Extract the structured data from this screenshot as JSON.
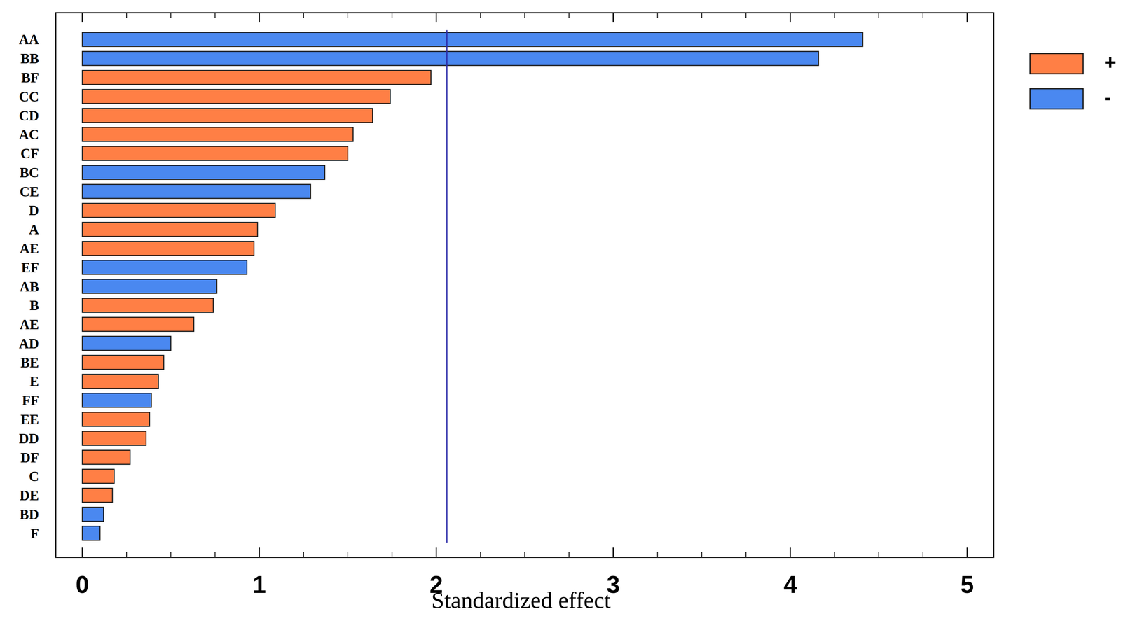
{
  "chart_data": {
    "type": "bar",
    "orientation": "horizontal",
    "x_label": "Standardized effect",
    "categories": [
      "AA",
      "BB",
      "BF",
      "CC",
      "CD",
      "AC",
      "CF",
      "BC",
      "CE",
      "D",
      "A",
      "AE",
      "EF",
      "AB",
      "B",
      "AE",
      "AD",
      "BE",
      "E",
      "FF",
      "EE",
      "DD",
      "DF",
      "C",
      "DE",
      "BD",
      "F"
    ],
    "series": [
      {
        "name": "+",
        "color": "#ff7f45",
        "values": [
          null,
          null,
          1.97,
          1.74,
          1.64,
          1.53,
          1.5,
          null,
          null,
          1.09,
          0.99,
          0.97,
          null,
          null,
          0.74,
          0.63,
          null,
          0.46,
          0.43,
          null,
          0.38,
          0.36,
          0.27,
          0.18,
          0.17,
          null,
          null
        ]
      },
      {
        "name": "-",
        "color": "#4a88f0",
        "values": [
          4.41,
          4.16,
          null,
          null,
          null,
          null,
          null,
          1.37,
          1.29,
          null,
          null,
          null,
          0.93,
          0.76,
          null,
          null,
          0.5,
          null,
          null,
          0.39,
          null,
          null,
          null,
          null,
          null,
          0.12,
          0.1
        ]
      }
    ],
    "threshold": 2.06,
    "xlim": [
      -0.15,
      5.15
    ],
    "xticks": [
      0,
      1,
      2,
      3,
      4,
      5
    ],
    "legend": "upper right"
  }
}
